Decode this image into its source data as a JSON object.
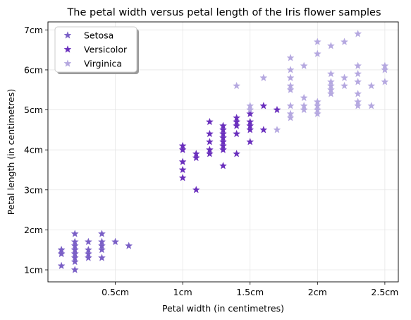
{
  "chart_data": {
    "type": "scatter",
    "title": "The petal width versus petal length of the Iris flower samples",
    "xlabel": "Petal width (in centimetres)",
    "ylabel": "Petal length (in centimetres)",
    "xlim": [
      0.0,
      2.6
    ],
    "ylim": [
      0.7,
      7.2
    ],
    "x_ticks": [
      {
        "value": 0.5,
        "label": "0.5cm"
      },
      {
        "value": 1.0,
        "label": "1cm"
      },
      {
        "value": 1.5,
        "label": "1.5cm"
      },
      {
        "value": 2.0,
        "label": "2cm"
      },
      {
        "value": 2.5,
        "label": "2.5cm"
      }
    ],
    "y_ticks": [
      {
        "value": 1,
        "label": "1cm"
      },
      {
        "value": 2,
        "label": "2cm"
      },
      {
        "value": 3,
        "label": "3cm"
      },
      {
        "value": 4,
        "label": "4cm"
      },
      {
        "value": 5,
        "label": "5cm"
      },
      {
        "value": 6,
        "label": "6cm"
      },
      {
        "value": 7,
        "label": "7cm"
      }
    ],
    "grid": true,
    "legend": "top-left",
    "marker": "star",
    "series": [
      {
        "name": "Setosa",
        "color": "#7a5fc6",
        "points": [
          [
            0.1,
            1.5
          ],
          [
            0.1,
            1.4
          ],
          [
            0.1,
            1.1
          ],
          [
            0.1,
            1.5
          ],
          [
            0.1,
            1.4
          ],
          [
            0.2,
            1.0
          ],
          [
            0.2,
            1.2
          ],
          [
            0.2,
            1.3
          ],
          [
            0.2,
            1.4
          ],
          [
            0.2,
            1.5
          ],
          [
            0.2,
            1.6
          ],
          [
            0.2,
            1.7
          ],
          [
            0.2,
            1.9
          ],
          [
            0.2,
            1.4
          ],
          [
            0.2,
            1.5
          ],
          [
            0.3,
            1.3
          ],
          [
            0.3,
            1.4
          ],
          [
            0.3,
            1.5
          ],
          [
            0.3,
            1.7
          ],
          [
            0.4,
            1.3
          ],
          [
            0.4,
            1.5
          ],
          [
            0.4,
            1.6
          ],
          [
            0.4,
            1.7
          ],
          [
            0.4,
            1.9
          ],
          [
            0.5,
            1.7
          ],
          [
            0.6,
            1.6
          ]
        ]
      },
      {
        "name": "Versicolor",
        "color": "#6a2fbd",
        "points": [
          [
            1.0,
            3.3
          ],
          [
            1.0,
            3.5
          ],
          [
            1.0,
            3.7
          ],
          [
            1.0,
            4.0
          ],
          [
            1.0,
            4.1
          ],
          [
            1.1,
            3.0
          ],
          [
            1.1,
            3.8
          ],
          [
            1.1,
            3.9
          ],
          [
            1.2,
            3.9
          ],
          [
            1.2,
            4.0
          ],
          [
            1.2,
            4.2
          ],
          [
            1.2,
            4.4
          ],
          [
            1.2,
            4.7
          ],
          [
            1.3,
            3.6
          ],
          [
            1.3,
            4.0
          ],
          [
            1.3,
            4.1
          ],
          [
            1.3,
            4.2
          ],
          [
            1.3,
            4.3
          ],
          [
            1.3,
            4.4
          ],
          [
            1.3,
            4.5
          ],
          [
            1.3,
            4.6
          ],
          [
            1.4,
            3.9
          ],
          [
            1.4,
            4.4
          ],
          [
            1.4,
            4.6
          ],
          [
            1.4,
            4.7
          ],
          [
            1.4,
            4.8
          ],
          [
            1.5,
            4.2
          ],
          [
            1.5,
            4.5
          ],
          [
            1.5,
            4.6
          ],
          [
            1.5,
            4.7
          ],
          [
            1.5,
            4.9
          ],
          [
            1.6,
            4.5
          ],
          [
            1.6,
            5.1
          ],
          [
            1.7,
            5.0
          ]
        ]
      },
      {
        "name": "Virginica",
        "color": "#b5a8e0",
        "points": [
          [
            1.4,
            5.6
          ],
          [
            1.5,
            5.0
          ],
          [
            1.5,
            5.1
          ],
          [
            1.6,
            5.8
          ],
          [
            1.7,
            4.5
          ],
          [
            1.8,
            4.8
          ],
          [
            1.8,
            4.9
          ],
          [
            1.8,
            5.1
          ],
          [
            1.8,
            5.5
          ],
          [
            1.8,
            5.6
          ],
          [
            1.8,
            5.8
          ],
          [
            1.8,
            6.0
          ],
          [
            1.8,
            6.3
          ],
          [
            1.9,
            5.0
          ],
          [
            1.9,
            5.1
          ],
          [
            1.9,
            5.3
          ],
          [
            1.9,
            6.1
          ],
          [
            2.0,
            4.9
          ],
          [
            2.0,
            5.0
          ],
          [
            2.0,
            5.1
          ],
          [
            2.0,
            5.2
          ],
          [
            2.0,
            6.4
          ],
          [
            2.0,
            6.7
          ],
          [
            2.1,
            5.4
          ],
          [
            2.1,
            5.5
          ],
          [
            2.1,
            5.6
          ],
          [
            2.1,
            5.7
          ],
          [
            2.1,
            5.9
          ],
          [
            2.1,
            6.6
          ],
          [
            2.2,
            5.6
          ],
          [
            2.2,
            5.8
          ],
          [
            2.2,
            6.7
          ],
          [
            2.3,
            5.1
          ],
          [
            2.3,
            5.2
          ],
          [
            2.3,
            5.4
          ],
          [
            2.3,
            5.7
          ],
          [
            2.3,
            5.9
          ],
          [
            2.3,
            6.1
          ],
          [
            2.3,
            6.9
          ],
          [
            2.4,
            5.1
          ],
          [
            2.4,
            5.6
          ],
          [
            2.5,
            5.7
          ],
          [
            2.5,
            6.0
          ],
          [
            2.5,
            6.1
          ]
        ]
      }
    ]
  }
}
